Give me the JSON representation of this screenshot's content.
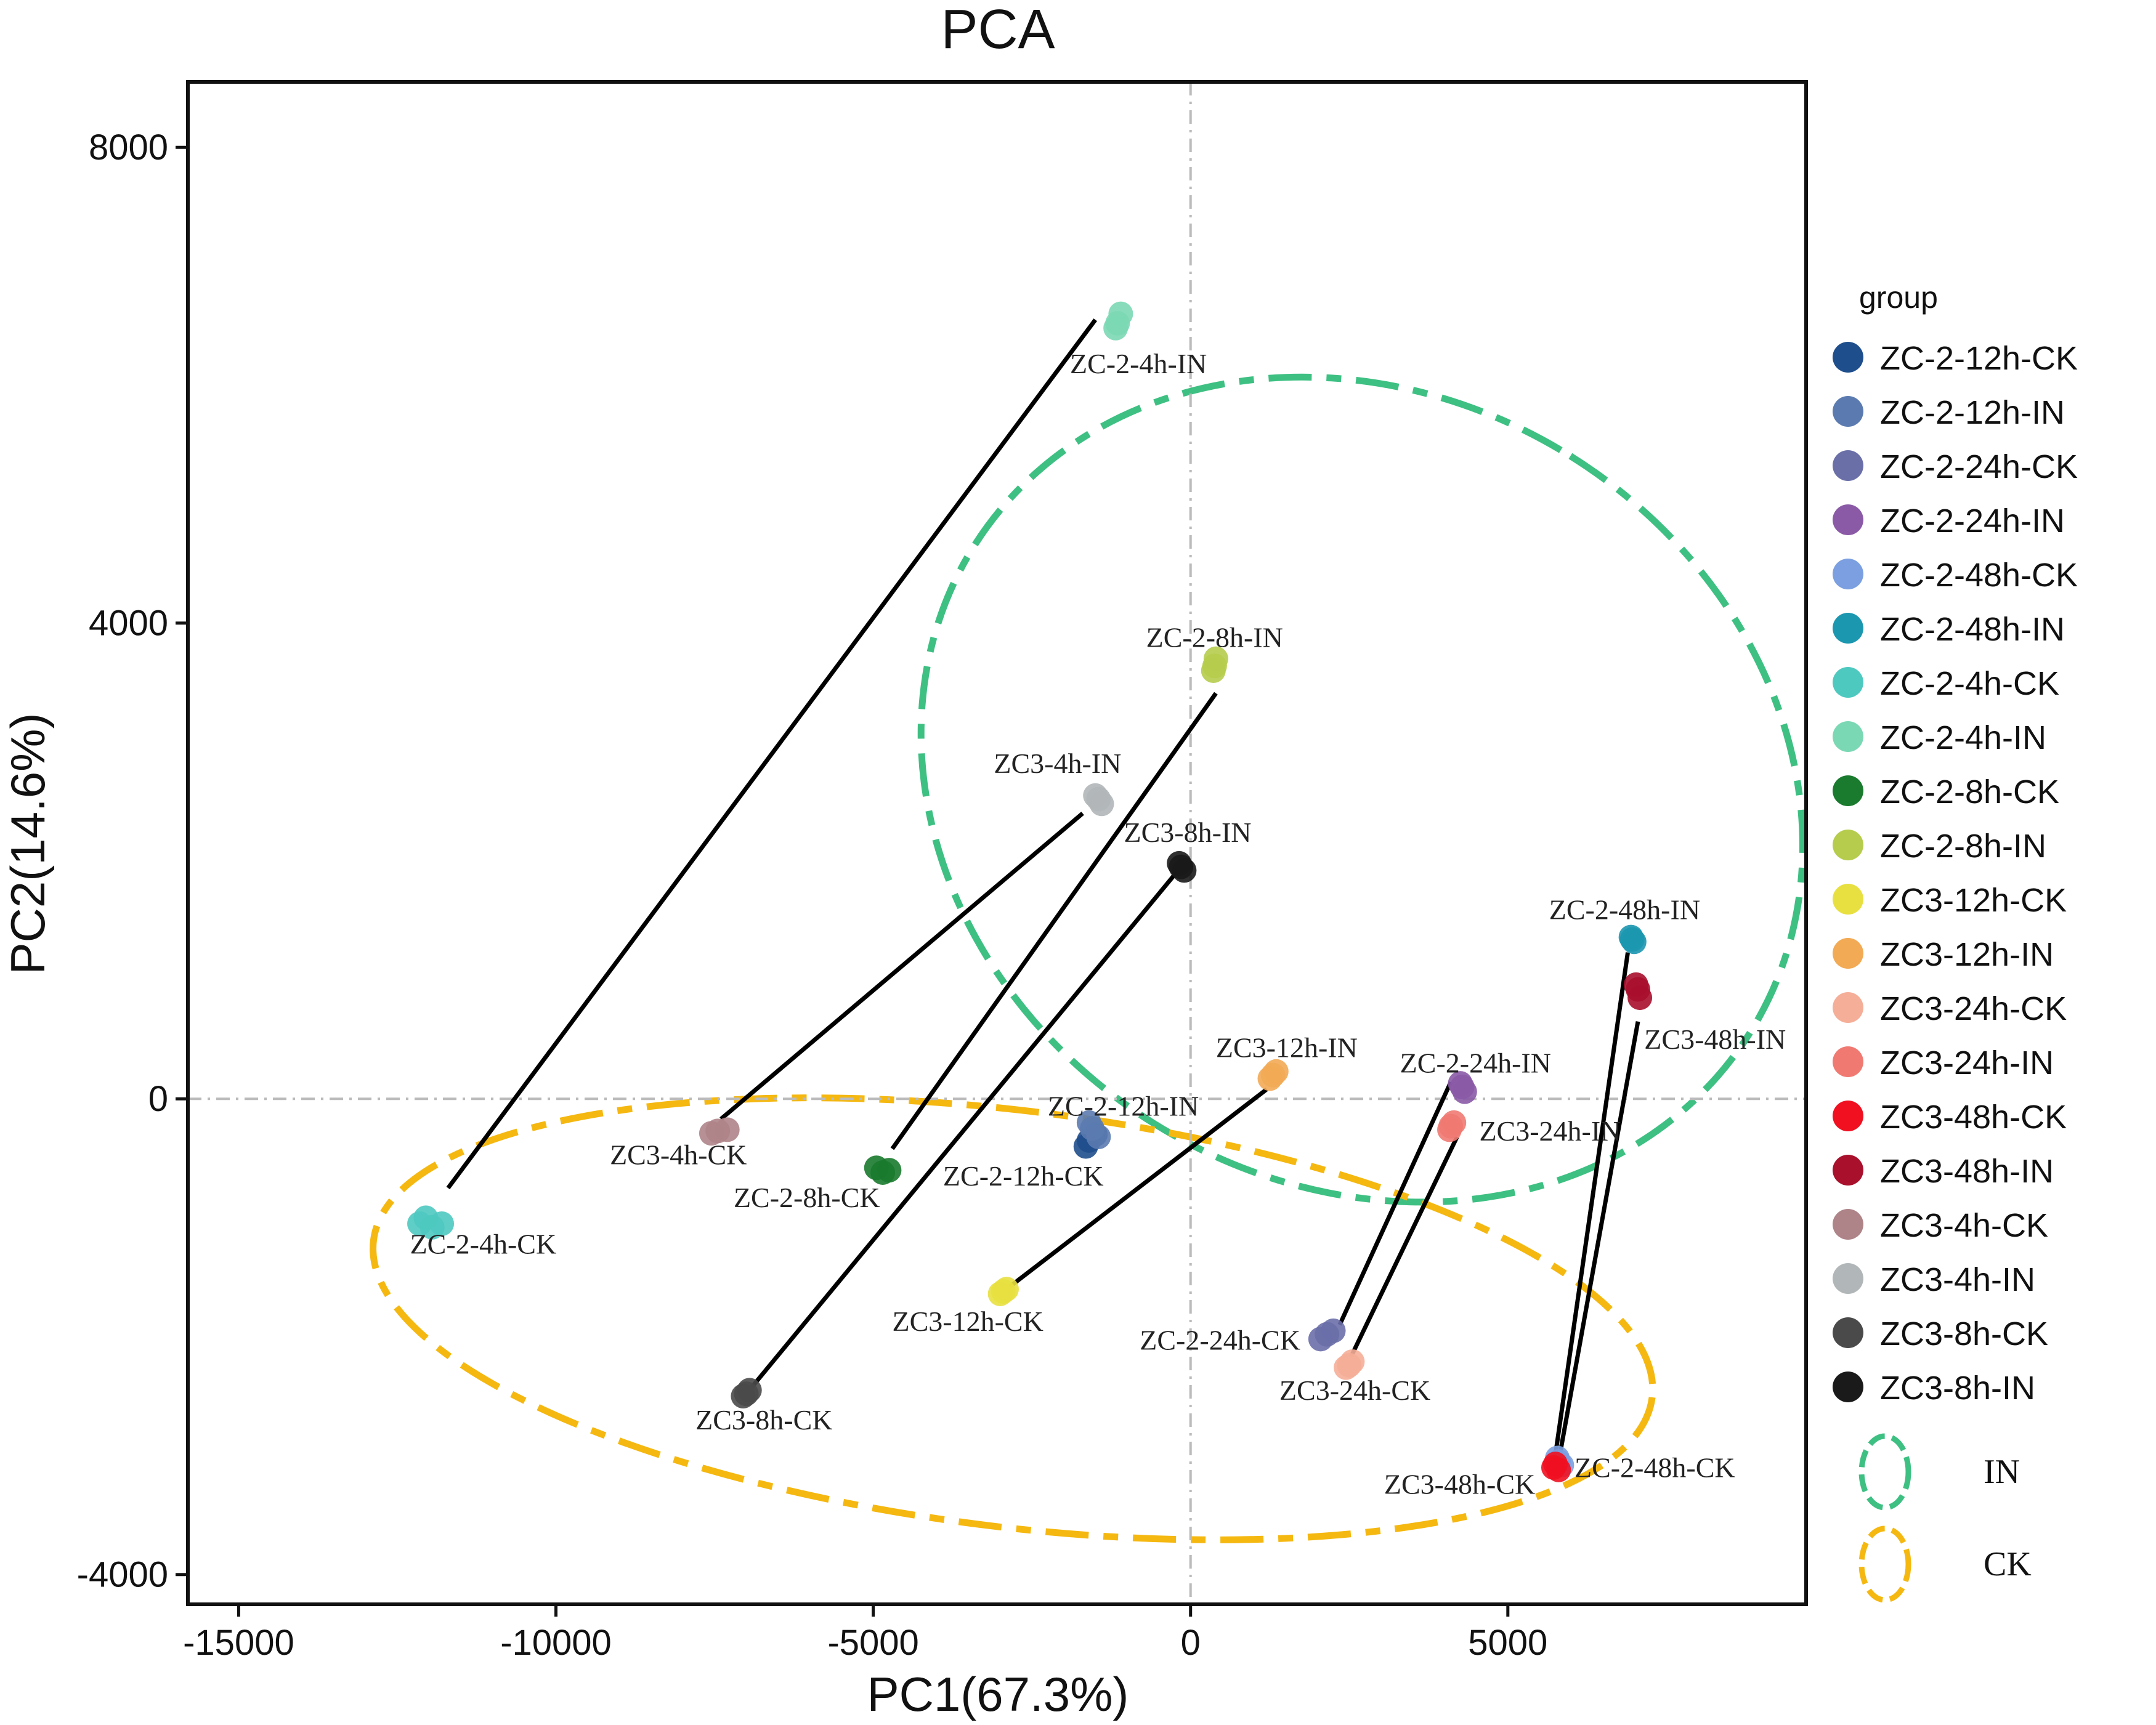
{
  "chart_data": {
    "type": "scatter",
    "title": "PCA",
    "xlabel": "PC1(67.3%)",
    "ylabel": "PC2(14.6%)",
    "xlim": [
      -15800,
      9700
    ],
    "ylim": [
      -4250,
      8550
    ],
    "xticks": [
      -15000,
      -10000,
      -5000,
      0,
      5000
    ],
    "yticks": [
      -4000,
      0,
      4000,
      8000
    ],
    "xtick_labels": [
      "-15000",
      "-10000",
      "-5000",
      "0",
      "5000"
    ],
    "ytick_labels": [
      "-4000",
      "0",
      "4000",
      "8000"
    ],
    "reference_lines": {
      "x": 0,
      "y": 0
    },
    "legend_title": "group",
    "groups": [
      {
        "name": "ZC-2-12h-CK",
        "color": "#1f4e8c",
        "points": [
          [
            -1600,
            -350
          ],
          [
            -1500,
            -300
          ],
          [
            -1650,
            -400
          ]
        ]
      },
      {
        "name": "ZC-2-12h-IN",
        "color": "#5b7bb0",
        "points": [
          [
            -1550,
            -250
          ],
          [
            -1450,
            -320
          ],
          [
            -1600,
            -200
          ]
        ]
      },
      {
        "name": "ZC-2-24h-CK",
        "color": "#6a6fa8",
        "points": [
          [
            2150,
            -1980
          ],
          [
            2250,
            -1950
          ],
          [
            2050,
            -2020
          ]
        ]
      },
      {
        "name": "ZC-2-24h-IN",
        "color": "#8a5aa6",
        "points": [
          [
            4280,
            100
          ],
          [
            4320,
            60
          ],
          [
            4250,
            130
          ]
        ]
      },
      {
        "name": "ZC-2-48h-CK",
        "color": "#7b9fe0",
        "points": [
          [
            5800,
            -3050
          ],
          [
            5850,
            -3080
          ],
          [
            5780,
            -3020
          ]
        ]
      },
      {
        "name": "ZC-2-48h-IN",
        "color": "#1c97b0",
        "points": [
          [
            6960,
            1340
          ],
          [
            6990,
            1320
          ],
          [
            6940,
            1360
          ]
        ]
      },
      {
        "name": "ZC-2-4h-CK",
        "color": "#4ec9c0",
        "points": [
          [
            -12050,
            -1000
          ],
          [
            -11800,
            -1050
          ],
          [
            -12150,
            -1050
          ],
          [
            -11950,
            -1080
          ]
        ]
      },
      {
        "name": "ZC-2-4h-IN",
        "color": "#7bd8b4",
        "points": [
          [
            -1150,
            6520
          ],
          [
            -1100,
            6600
          ],
          [
            -1180,
            6480
          ]
        ]
      },
      {
        "name": "ZC-2-8h-CK",
        "color": "#1a7a2e",
        "points": [
          [
            -4950,
            -580
          ],
          [
            -4750,
            -600
          ],
          [
            -4850,
            -620
          ]
        ]
      },
      {
        "name": "ZC-2-8h-IN",
        "color": "#b5cc4c",
        "points": [
          [
            380,
            3640
          ],
          [
            400,
            3700
          ],
          [
            360,
            3600
          ]
        ]
      },
      {
        "name": "ZC3-12h-CK",
        "color": "#e8e040",
        "points": [
          [
            -2950,
            -1620
          ],
          [
            -2900,
            -1600
          ],
          [
            -3000,
            -1640
          ]
        ]
      },
      {
        "name": "ZC3-12h-IN",
        "color": "#f2aa55",
        "points": [
          [
            1300,
            200
          ],
          [
            1350,
            230
          ],
          [
            1250,
            170
          ]
        ]
      },
      {
        "name": "ZC3-24h-CK",
        "color": "#f5ae98",
        "points": [
          [
            2500,
            -2240
          ],
          [
            2550,
            -2210
          ],
          [
            2450,
            -2260
          ]
        ]
      },
      {
        "name": "ZC3-24h-IN",
        "color": "#f07a72",
        "points": [
          [
            4100,
            -230
          ],
          [
            4150,
            -200
          ],
          [
            4080,
            -260
          ]
        ]
      },
      {
        "name": "ZC3-48h-CK",
        "color": "#f01020",
        "points": [
          [
            5720,
            -3100
          ],
          [
            5800,
            -3120
          ],
          [
            5750,
            -3070
          ]
        ]
      },
      {
        "name": "ZC3-48h-IN",
        "color": "#a8102c",
        "points": [
          [
            7050,
            920
          ],
          [
            7080,
            850
          ],
          [
            7020,
            960
          ]
        ]
      },
      {
        "name": "ZC3-4h-CK",
        "color": "#ae8488",
        "points": [
          [
            -7450,
            -270
          ],
          [
            -7300,
            -260
          ],
          [
            -7550,
            -290
          ]
        ]
      },
      {
        "name": "ZC3-4h-IN",
        "color": "#b1b6b8",
        "points": [
          [
            -1450,
            2520
          ],
          [
            -1400,
            2480
          ],
          [
            -1500,
            2550
          ]
        ]
      },
      {
        "name": "ZC3-8h-CK",
        "color": "#4a4a4a",
        "points": [
          [
            -7000,
            -2480
          ],
          [
            -6950,
            -2450
          ],
          [
            -7050,
            -2500
          ]
        ]
      },
      {
        "name": "ZC3-8h-IN",
        "color": "#1a1a1a",
        "points": [
          [
            -150,
            1950
          ],
          [
            -100,
            1920
          ],
          [
            -180,
            1980
          ]
        ]
      }
    ],
    "pairs": [
      {
        "from": [
          -11700,
          -750
        ],
        "to": [
          -1500,
          6550
        ]
      },
      {
        "from": [
          -7400,
          -170
        ],
        "to": [
          -1700,
          2400
        ]
      },
      {
        "from": [
          -4700,
          -420
        ],
        "to": [
          400,
          3410
        ]
      },
      {
        "from": [
          -7000,
          -2480
        ],
        "to": [
          -150,
          1950
        ]
      },
      {
        "from": [
          -2850,
          -1580
        ],
        "to": [
          1200,
          80
        ]
      },
      {
        "from": [
          2350,
          -1900
        ],
        "to": [
          4100,
          140
        ]
      },
      {
        "from": [
          2500,
          -2200
        ],
        "to": [
          4200,
          -320
        ]
      },
      {
        "from": [
          5800,
          -3050
        ],
        "to": [
          7050,
          650
        ]
      },
      {
        "from": [
          5720,
          -3100
        ],
        "to": [
          6890,
          1230
        ]
      }
    ],
    "point_labels": [
      {
        "text": "ZC-2-4h-IN",
        "x": -1900,
        "y": 6100
      },
      {
        "text": "ZC-2-8h-IN",
        "x": -700,
        "y": 3800
      },
      {
        "text": "ZC3-4h-IN",
        "x": -3100,
        "y": 2740
      },
      {
        "text": "ZC3-8h-IN",
        "x": -1050,
        "y": 2160
      },
      {
        "text": "ZC-2-48h-IN",
        "x": 5650,
        "y": 1510
      },
      {
        "text": "ZC3-48h-IN",
        "x": 7150,
        "y": 420
      },
      {
        "text": "ZC3-12h-IN",
        "x": 400,
        "y": 350
      },
      {
        "text": "ZC-2-24h-IN",
        "x": 3300,
        "y": 220
      },
      {
        "text": "ZC-2-12h-IN",
        "x": -2250,
        "y": -140
      },
      {
        "text": "ZC3-24h-IN",
        "x": 4550,
        "y": -350
      },
      {
        "text": "ZC3-4h-CK",
        "x": -9150,
        "y": -550
      },
      {
        "text": "ZC-2-8h-CK",
        "x": -7200,
        "y": -910
      },
      {
        "text": "ZC-2-12h-CK",
        "x": -3900,
        "y": -730
      },
      {
        "text": "ZC-2-4h-CK",
        "x": -12300,
        "y": -1300
      },
      {
        "text": "ZC3-12h-CK",
        "x": -4700,
        "y": -1950
      },
      {
        "text": "ZC-2-24h-CK",
        "x": -800,
        "y": -2110
      },
      {
        "text": "ZC3-24h-CK",
        "x": 1400,
        "y": -2530
      },
      {
        "text": "ZC3-8h-CK",
        "x": -7800,
        "y": -2780
      },
      {
        "text": "ZC3-48h-CK",
        "x": 3050,
        "y": -3320
      },
      {
        "text": "ZC-2-48h-CK",
        "x": 6050,
        "y": -3180
      }
    ],
    "ellipses": [
      {
        "name": "IN",
        "color": "#3ec083",
        "cx": 2700,
        "cy": 2600,
        "rx": 6200,
        "ry": 3850,
        "rotate_deg": -58
      },
      {
        "name": "CK",
        "color": "#f5b811",
        "cx": -2800,
        "cy": -1850,
        "rx": 10150,
        "ry": 1750,
        "rotate_deg": 7
      }
    ]
  }
}
